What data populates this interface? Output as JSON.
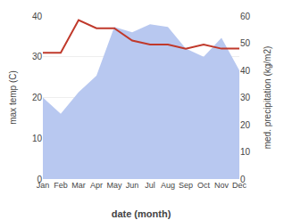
{
  "chart_data": {
    "type": "line",
    "xlabel": "date (month)",
    "ylabel": "max temp (C)",
    "y2label": "med. precipitation (kg/m2)",
    "categories": [
      "Jan",
      "Feb",
      "Mar",
      "Apr",
      "May",
      "Jun",
      "Jul",
      "Aug",
      "Sep",
      "Oct",
      "Nov",
      "Dec"
    ],
    "series": [
      {
        "type": "area",
        "color": "#b8c8f0",
        "axis": "y2",
        "values": [
          30,
          24,
          32,
          38,
          56,
          54,
          57,
          56,
          48,
          45,
          52,
          40
        ]
      },
      {
        "type": "line",
        "color": "#c0392b",
        "values": [
          31,
          31,
          39,
          37,
          37,
          34,
          33,
          33,
          32,
          33,
          32,
          32
        ]
      }
    ],
    "ylim": [
      0,
      40
    ],
    "yticks": [
      0,
      10,
      20,
      30,
      40
    ],
    "y2lim": [
      0,
      60
    ],
    "y2ticks": [
      0,
      10,
      20,
      30,
      40,
      50,
      60
    ],
    "grid": true
  }
}
